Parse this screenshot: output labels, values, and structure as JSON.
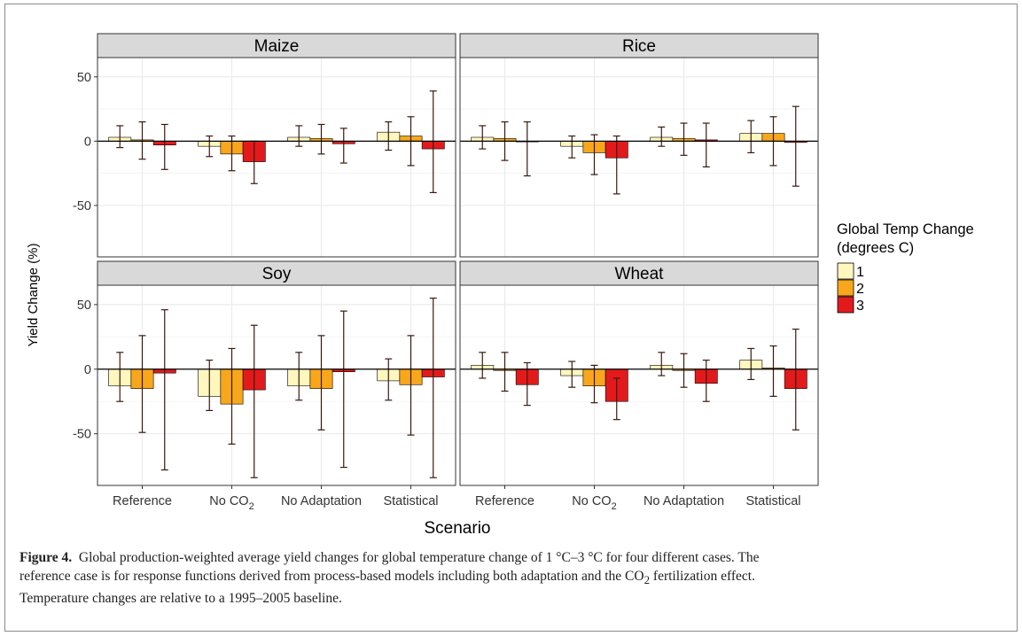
{
  "chart_data": {
    "type": "bar",
    "subtype": "faceted grouped bar with error bars",
    "xlabel": "Scenario",
    "ylabel": "Yield Change (%)",
    "ylim": [
      -90,
      65
    ],
    "yticks": [
      50,
      0,
      -50
    ],
    "ytick_labels": [
      "50",
      "0",
      "-50"
    ],
    "categories": [
      "Reference",
      "No CO2",
      "No Adaptation",
      "Statistical"
    ],
    "category_labels": [
      {
        "main": "Reference",
        "sub": ""
      },
      {
        "main": "No CO",
        "sub": "2"
      },
      {
        "main": "No Adaptation",
        "sub": ""
      },
      {
        "main": "Statistical",
        "sub": ""
      }
    ],
    "grid": true,
    "legend": {
      "title_lines": [
        "Global Temp Change",
        "(degrees C)"
      ],
      "placement": "right",
      "entries": [
        {
          "label": "1",
          "color": "#FFF7BE"
        },
        {
          "label": "2",
          "color": "#F8A71C"
        },
        {
          "label": "3",
          "color": "#E31A1C"
        }
      ]
    },
    "facets": [
      {
        "name": "Maize",
        "series": [
          {
            "temp": "1",
            "values": [
              3,
              -4,
              3,
              7
            ],
            "err_low": [
              -5,
              -12,
              -4,
              -7
            ],
            "err_high": [
              12,
              4,
              12,
              15
            ]
          },
          {
            "temp": "2",
            "values": [
              1,
              -10,
              2,
              4
            ],
            "err_low": [
              -14,
              -23,
              -10,
              -19
            ],
            "err_high": [
              15,
              4,
              13,
              19
            ]
          },
          {
            "temp": "3",
            "values": [
              -3,
              -16,
              -2,
              -6
            ],
            "err_low": [
              -22,
              -33,
              -17,
              -40
            ],
            "err_high": [
              13,
              0,
              10,
              39
            ]
          }
        ]
      },
      {
        "name": "Rice",
        "series": [
          {
            "temp": "1",
            "values": [
              3,
              -4,
              3,
              6
            ],
            "err_low": [
              -6,
              -13,
              -4,
              -9
            ],
            "err_high": [
              12,
              4,
              11,
              16
            ]
          },
          {
            "temp": "2",
            "values": [
              2,
              -9,
              2,
              6
            ],
            "err_low": [
              -15,
              -26,
              -11,
              -19
            ],
            "err_high": [
              15,
              5,
              14,
              19
            ]
          },
          {
            "temp": "3",
            "values": [
              0,
              -13,
              1,
              -1
            ],
            "err_low": [
              -27,
              -41,
              -20,
              -35
            ],
            "err_high": [
              15,
              4,
              14,
              27
            ]
          }
        ]
      },
      {
        "name": "Soy",
        "series": [
          {
            "temp": "1",
            "values": [
              -13,
              -21,
              -13,
              -9
            ],
            "err_low": [
              -25,
              -32,
              -24,
              -24
            ],
            "err_high": [
              13,
              7,
              13,
              8
            ]
          },
          {
            "temp": "2",
            "values": [
              -15,
              -27,
              -15,
              -12
            ],
            "err_low": [
              -49,
              -58,
              -47,
              -51
            ],
            "err_high": [
              26,
              16,
              26,
              26
            ]
          },
          {
            "temp": "3",
            "values": [
              -3,
              -16,
              -2,
              -6
            ],
            "err_low": [
              -78,
              -84,
              -76,
              -84
            ],
            "err_high": [
              46,
              34,
              45,
              55
            ]
          }
        ]
      },
      {
        "name": "Wheat",
        "series": [
          {
            "temp": "1",
            "values": [
              3,
              -5,
              3,
              7
            ],
            "err_low": [
              -7,
              -14,
              -5,
              -8
            ],
            "err_high": [
              13,
              6,
              13,
              16
            ]
          },
          {
            "temp": "2",
            "values": [
              -1,
              -13,
              -1,
              1
            ],
            "err_low": [
              -17,
              -26,
              -14,
              -21
            ],
            "err_high": [
              13,
              3,
              12,
              18
            ]
          },
          {
            "temp": "3",
            "values": [
              -12,
              -25,
              -11,
              -15
            ],
            "err_low": [
              -28,
              -39,
              -25,
              -47
            ],
            "err_high": [
              5,
              -7,
              7,
              31
            ]
          }
        ]
      }
    ]
  },
  "caption": {
    "label": "Figure 4.",
    "line1_text": "Global production-weighted average yield changes for global temperature change of 1 °C–3 °C for four different cases. The",
    "line2_before": "reference case is for response functions derived from process-based models including both adaptation and the CO",
    "line2_sub": "2",
    "line2_after": " fertilization effect.",
    "line3_text": "Temperature changes are relative to a 1995–2005 baseline."
  }
}
